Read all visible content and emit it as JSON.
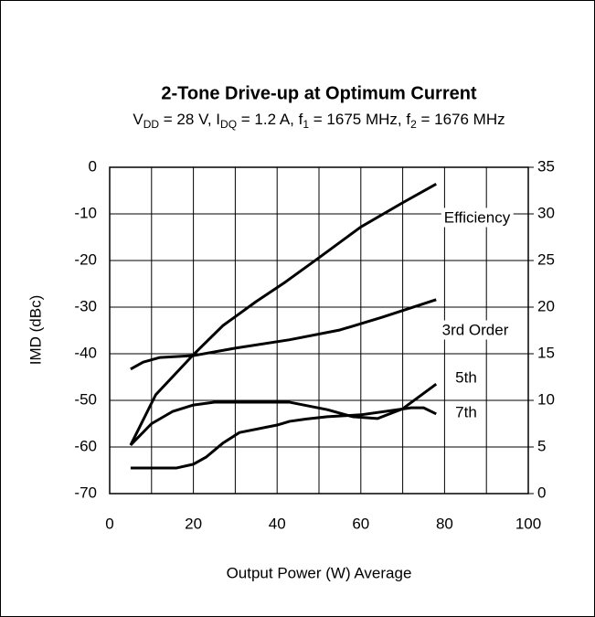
{
  "chart_data": {
    "type": "line",
    "title": "2-Tone Drive-up at Optimum Current",
    "subtitle_parts": [
      "V",
      "DD",
      " = 28 V, I",
      "DQ",
      " = 1.2 A, f",
      "1",
      " = 1675 MHz, f",
      "2",
      " = 1676 MHz"
    ],
    "xlabel": "Output Power (W) Average",
    "ylabel": "IMD (dBc)",
    "xlim": [
      0,
      100
    ],
    "xticks": [
      0,
      20,
      40,
      60,
      80,
      100
    ],
    "ylim": [
      -70,
      0
    ],
    "yticks": [
      0,
      -10,
      -20,
      -30,
      -40,
      -50,
      -60,
      -70
    ],
    "y2lim": [
      0,
      35
    ],
    "y2ticks": [
      35,
      30,
      25,
      20,
      15,
      10,
      5,
      0
    ],
    "grid": true,
    "series": [
      {
        "name": "Efficiency",
        "color": "#000000",
        "axis": "y2",
        "x": [
          5,
          11,
          20,
          27,
          35,
          42,
          50,
          60,
          70,
          78
        ],
        "values": [
          5.2,
          10.6,
          14.9,
          18,
          20.6,
          22.7,
          25.3,
          28.6,
          31.2,
          33.2
        ]
      },
      {
        "name": "3rd Order",
        "color": "#000000",
        "x": [
          5,
          8,
          12,
          20,
          30,
          43,
          55,
          65,
          78
        ],
        "values": [
          -43.3,
          -41.8,
          -40.8,
          -40.4,
          -38.8,
          -37,
          -34.9,
          -32.2,
          -28.4
        ]
      },
      {
        "name": "5th",
        "color": "#000000",
        "x": [
          5,
          10,
          15,
          20,
          25,
          40,
          43,
          52,
          58,
          64,
          70,
          78
        ],
        "values": [
          -59.6,
          -55,
          -52.4,
          -51,
          -50.4,
          -50.4,
          -50.4,
          -52,
          -53.5,
          -53.9,
          -51.8,
          -46.5
        ]
      },
      {
        "name": "7th",
        "color": "#000000",
        "x": [
          5,
          16,
          20,
          23,
          27,
          31,
          40,
          43,
          47,
          52,
          60,
          72,
          75,
          78
        ],
        "values": [
          -64.5,
          -64.5,
          -63.7,
          -62.2,
          -59.2,
          -56.9,
          -55.3,
          -54.5,
          -54,
          -53.5,
          -53.1,
          -51.6,
          -51.6,
          -52.9
        ]
      }
    ]
  }
}
